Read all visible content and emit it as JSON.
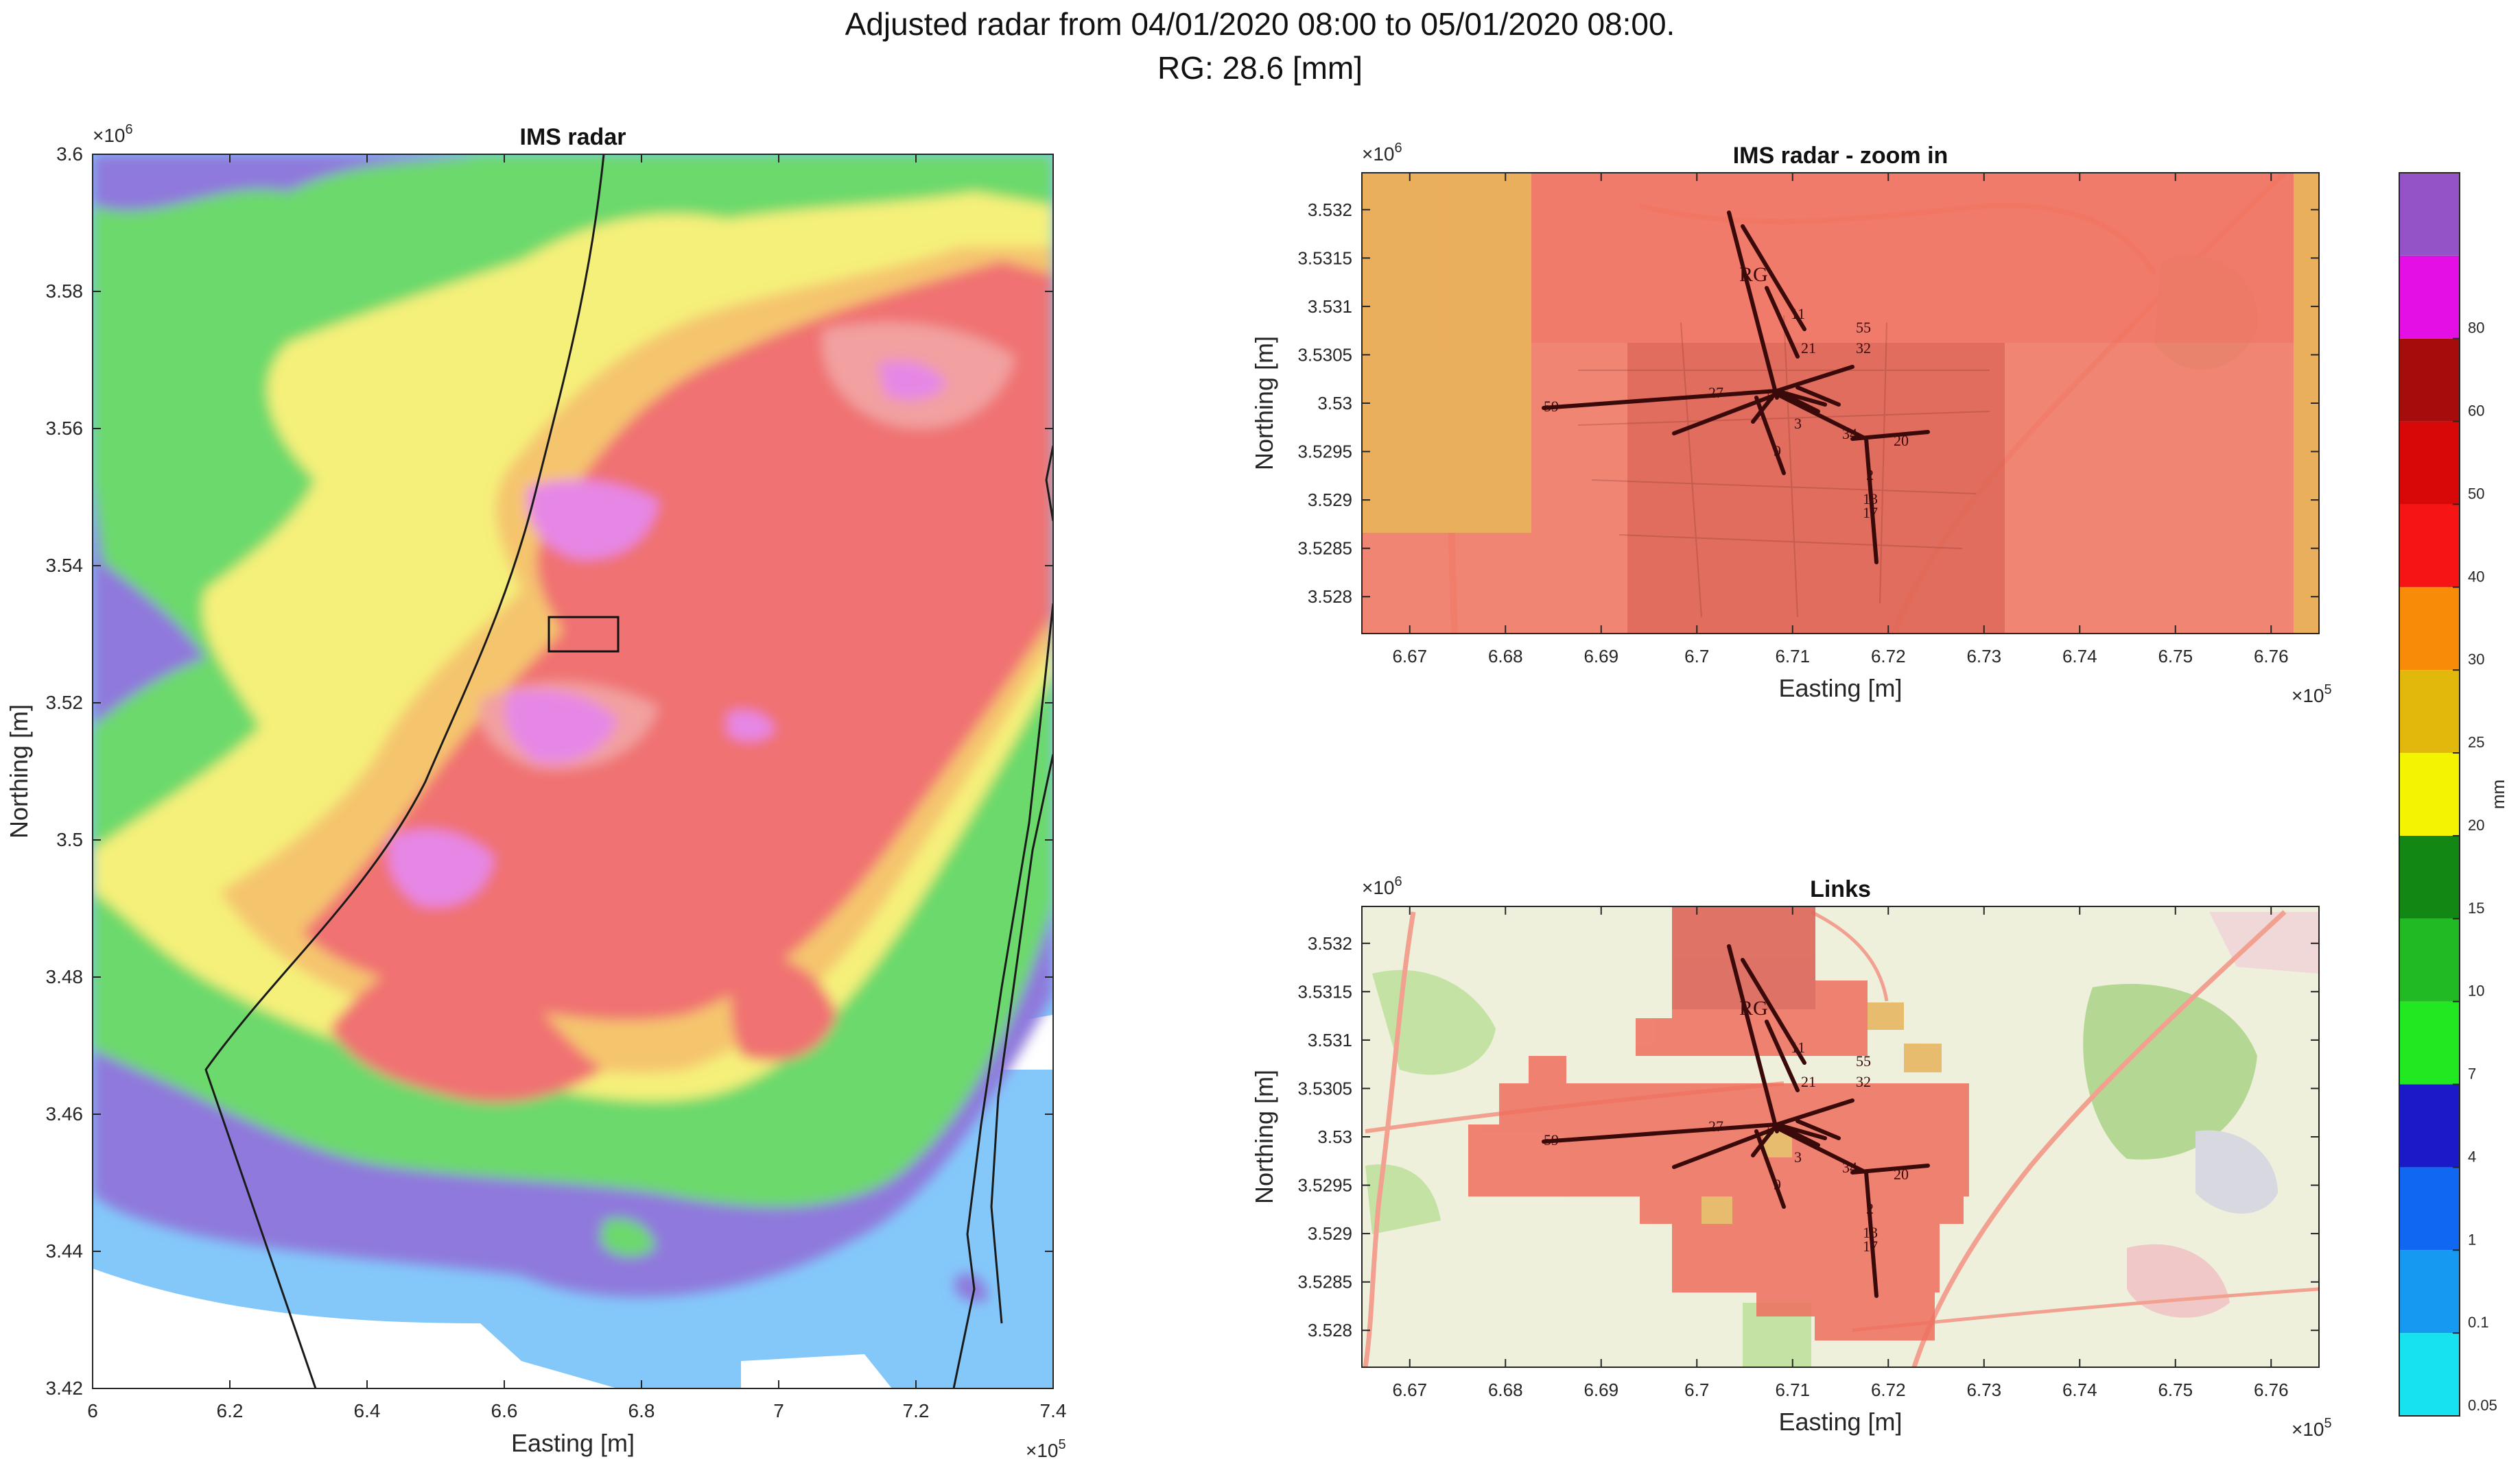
{
  "figure": {
    "title_line1": "Adjusted radar from 04/01/2020 08:00 to 05/01/2020 08:00.",
    "title_line2": "RG: 28.6 [mm]"
  },
  "colors": {
    "lightblue": "#84c8fa",
    "purple": "#8f79dc",
    "green": "#6cd96c",
    "yellow": "#f5f07a",
    "orange": "#f5c56e",
    "red": "#f07272",
    "salmon": "#f2a0a0",
    "pink": "#e687e6",
    "link": "#3a0a0a",
    "zoom_red": "#f0715f",
    "zoom_orange": "#e7b45c",
    "map_bg": "#eef0dc",
    "map_green": "#bfe0a0"
  },
  "chart_data": [
    {
      "type": "heatmap",
      "title": "IMS radar",
      "xlabel": "Easting [m]",
      "ylabel": "Northing [m]",
      "x_exponent": "×10^5",
      "y_exponent": "×10^6",
      "xlim": [
        6.0,
        7.4
      ],
      "ylim": [
        3.42,
        3.6
      ],
      "xticks": [
        "6",
        "6.2",
        "6.4",
        "6.6",
        "6.8",
        "7",
        "7.2",
        "7.4"
      ],
      "yticks": [
        "3.42",
        "3.44",
        "3.46",
        "3.48",
        "3.5",
        "3.52",
        "3.54",
        "3.56",
        "3.58",
        "3.6"
      ],
      "zoom_box": {
        "x": [
          6.665,
          6.765
        ],
        "y": [
          3.528,
          3.533
        ]
      }
    },
    {
      "type": "heatmap",
      "title": "IMS radar - zoom in",
      "xlabel": "Easting [m]",
      "ylabel": "Northing [m]",
      "x_exponent": "×10^5",
      "y_exponent": "×10^6",
      "xlim": [
        6.665,
        6.765
      ],
      "ylim": [
        3.5275,
        3.5324
      ],
      "xticks": [
        "6.67",
        "6.68",
        "6.69",
        "6.7",
        "6.71",
        "6.72",
        "6.73",
        "6.74",
        "6.75",
        "6.76"
      ],
      "yticks": [
        "3.528",
        "3.5285",
        "3.529",
        "3.5295",
        "3.53",
        "3.5305",
        "3.531",
        "3.5315",
        "3.532"
      ]
    },
    {
      "type": "heatmap",
      "title": "Links",
      "xlabel": "Easting [m]",
      "ylabel": "Northing [m]",
      "x_exponent": "×10^5",
      "y_exponent": "×10^6",
      "xlim": [
        6.665,
        6.765
      ],
      "ylim": [
        3.5275,
        3.5324
      ],
      "xticks": [
        "6.67",
        "6.68",
        "6.69",
        "6.7",
        "6.71",
        "6.72",
        "6.73",
        "6.74",
        "6.75",
        "6.76"
      ],
      "yticks": [
        "3.528",
        "3.5285",
        "3.529",
        "3.5295",
        "3.53",
        "3.5305",
        "3.531",
        "3.5315",
        "3.532"
      ]
    }
  ],
  "colorbar": {
    "label": "mm",
    "segments": [
      {
        "color": "#17e3ef",
        "tick": "0.05"
      },
      {
        "color": "#1599f1",
        "tick": "0.1"
      },
      {
        "color": "#0f67f2",
        "tick": "1"
      },
      {
        "color": "#1a1ac8",
        "tick": "4"
      },
      {
        "color": "#22e822",
        "tick": "7"
      },
      {
        "color": "#22ba22",
        "tick": "10"
      },
      {
        "color": "#138713",
        "tick": "15"
      },
      {
        "color": "#f4f400",
        "tick": "20"
      },
      {
        "color": "#e3b80c",
        "tick": "25"
      },
      {
        "color": "#f88c08",
        "tick": "30"
      },
      {
        "color": "#f51515",
        "tick": "40"
      },
      {
        "color": "#d80808",
        "tick": "50"
      },
      {
        "color": "#a50c0c",
        "tick": "60"
      },
      {
        "color": "#e40fe4",
        "tick": "80"
      },
      {
        "color": "#9454c8",
        "tick": ""
      }
    ]
  },
  "links": {
    "labels": [
      "RG",
      "11",
      "21",
      "55",
      "32",
      "27",
      "59",
      "34",
      "20",
      "2",
      "13",
      "17",
      "3",
      "9",
      "5"
    ]
  }
}
